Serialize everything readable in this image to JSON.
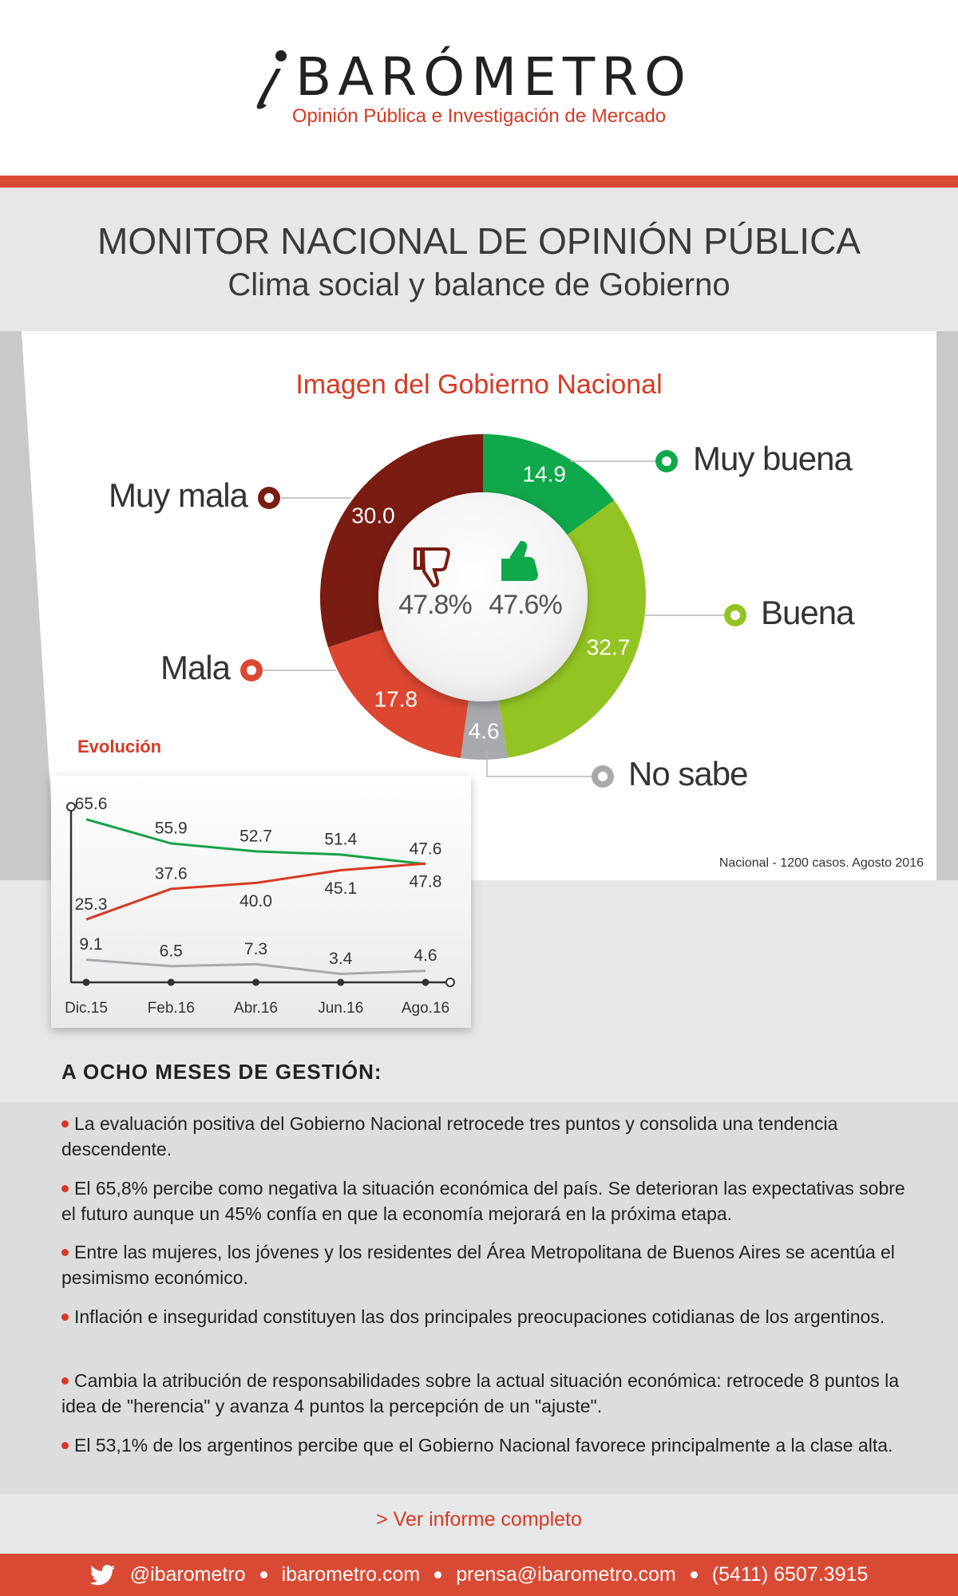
{
  "header": {
    "logo": "BARÓMETRO",
    "tagline": "Opinión Pública e Investigación de Mercado"
  },
  "title": {
    "main": "MONITOR NACIONAL DE OPINIÓN PÚBLICA",
    "subtitle": "Clima social y balance de Gobierno"
  },
  "chart_data": [
    {
      "type": "pie",
      "donut": true,
      "title": "Imagen del Gobierno Nacional",
      "categories": [
        "Muy buena",
        "Buena",
        "No sabe",
        "Mala",
        "Muy mala"
      ],
      "values": [
        14.9,
        32.7,
        4.6,
        17.8,
        30.0
      ],
      "value_labels": [
        "14.9",
        "32.7",
        "4.6",
        "17.8",
        "30.0"
      ],
      "colors": [
        "#0fa84a",
        "#94c423",
        "#a7a9ac",
        "#dd4731",
        "#7a1c12"
      ],
      "center_labels": [
        "47.8%",
        "47.6%"
      ],
      "note": "Nacional - 1200 casos. Agosto 2016"
    },
    {
      "type": "line",
      "title": "Evolución",
      "categories": [
        "Dic.15",
        "Feb.16",
        "Abr.16",
        "Jun.16",
        "Ago.16"
      ],
      "series": [
        {
          "color": "#18a04a",
          "values": [
            65.6,
            55.9,
            52.7,
            51.4,
            47.6
          ],
          "value_labels": [
            "65.6",
            "55.9",
            "52.7",
            "51.4",
            "47.6"
          ]
        },
        {
          "color": "#d63a24",
          "values": [
            25.3,
            37.6,
            40.0,
            45.1,
            47.8
          ],
          "value_labels": [
            "25.3",
            "37.6",
            "40.0",
            "45.1",
            "47.8"
          ]
        },
        {
          "color": "#a7a9ac",
          "values": [
            9.1,
            6.5,
            7.3,
            3.4,
            4.6
          ],
          "value_labels": [
            "9.1",
            "6.5",
            "7.3",
            "3.4",
            "4.6"
          ]
        }
      ],
      "ylim": [
        0,
        70
      ]
    }
  ],
  "section": {
    "heading": "A OCHO MESES DE GESTIÓN:",
    "bullets": [
      "La evaluación positiva del Gobierno Nacional retrocede tres puntos y consolida una tendencia descendente.",
      "El 65,8% percibe como negativa la situación económica del país. Se deterioran las expectativas sobre el futuro aunque un 45% confía en que la economía mejorará en la próxima etapa.",
      "Entre las mujeres, los jóvenes y los residentes del Área Metropolitana de Buenos Aires se acentúa el pesimismo económico.",
      "Inflación e inseguridad constituyen las dos principales preocupaciones cotidianas de los argentinos.",
      "Cambia la atribución de responsabilidades sobre la actual situación económica: retrocede 8 puntos la idea de \"herencia\" y avanza 4 puntos la percepción de un \"ajuste\".",
      "El 53,1% de los argentinos percibe que el Gobierno Nacional favorece principalmente a la clase alta."
    ],
    "link": "> Ver informe completo"
  },
  "footer": {
    "items": [
      "@ibarometro",
      "ibarometro.com",
      "prensa@ibarometro.com",
      "(5411) 6507.3915"
    ]
  }
}
